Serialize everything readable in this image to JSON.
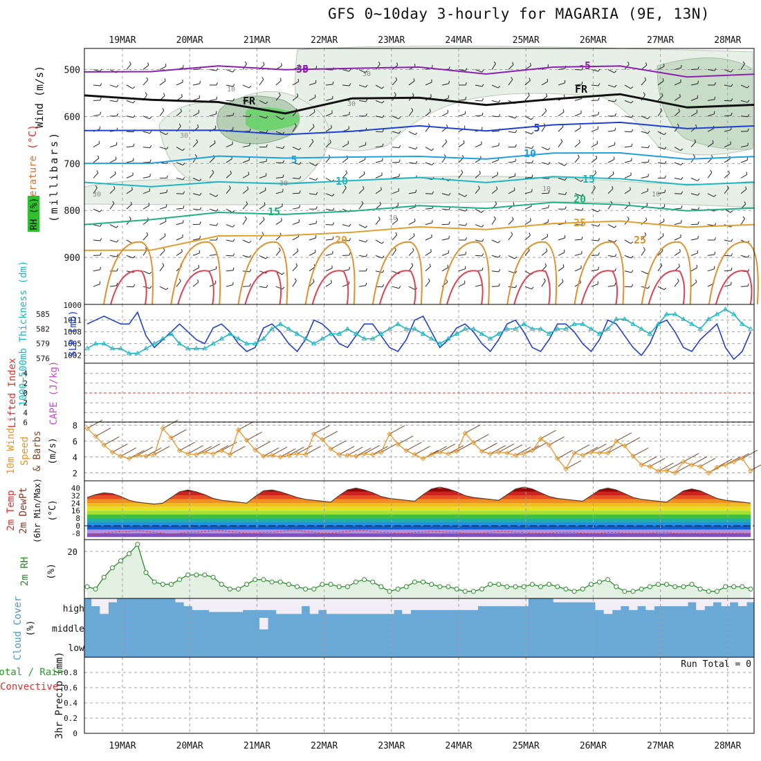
{
  "title": "GFS 0~10day 3-hourly for MAGARIA (9E, 13N)",
  "colors": {
    "grid": "#a0a0a0",
    "frame": "#000000",
    "slp": "#1f3fd0",
    "thickness": "#1fb6c0",
    "wind": "#e8952a",
    "rh2m": "#2a8a2a",
    "rh2m_fill": "#e3f1e3",
    "cloud": "#6aa9d6",
    "cloud_clear": "#f2eef6",
    "li_zero": "#e03030",
    "fr_line": "#111111"
  },
  "chart_data": [
    {
      "id": "vertical_profile",
      "type": "contour",
      "ylabel": "(millibars)",
      "side_labels": [
        "Wind (m/s)",
        "Temperature (°C)",
        "RH (%)"
      ],
      "y_ticks": [
        500,
        600,
        700,
        800,
        900
      ],
      "x_ticks": [
        "19MAR",
        "20MAR",
        "21MAR",
        "22MAR",
        "23MAR",
        "24MAR",
        "25MAR",
        "26MAR",
        "27MAR",
        "28MAR"
      ],
      "temperature_labels": [
        "-5",
        "-5",
        "FR",
        "FR",
        "5",
        "5",
        "10",
        "10",
        "15",
        "15",
        "20",
        "20",
        "25",
        "25",
        "30"
      ],
      "rh_labels": [
        "30",
        "30",
        "30",
        "30",
        "30",
        "10",
        "10",
        "10",
        "10"
      ],
      "isotherms": [
        {
          "label": "-5",
          "pressure": [
            505,
            500,
            498,
            497,
            496,
            500,
            504,
            497,
            495,
            510,
            515
          ]
        },
        {
          "label": "FR",
          "pressure": [
            555,
            560,
            575,
            590,
            560,
            565,
            570,
            565,
            555,
            575,
            580
          ]
        },
        {
          "label": "5",
          "pressure": [
            630,
            625,
            635,
            635,
            630,
            625,
            625,
            620,
            615,
            620,
            625
          ]
        },
        {
          "label": "10",
          "pressure": [
            700,
            695,
            690,
            685,
            685,
            690,
            685,
            680,
            680,
            685,
            690
          ]
        },
        {
          "label": "15",
          "pressure": [
            740,
            745,
            745,
            740,
            735,
            735,
            735,
            730,
            735,
            740,
            745
          ]
        },
        {
          "label": "20",
          "pressure": [
            830,
            815,
            810,
            805,
            800,
            795,
            790,
            785,
            790,
            795,
            800
          ]
        },
        {
          "label": "25",
          "pressure": [
            885,
            880,
            860,
            850,
            845,
            840,
            835,
            830,
            825,
            830,
            835
          ]
        }
      ]
    },
    {
      "id": "slp_thickness",
      "type": "line",
      "ylabel_left": "1000~500mb Thickness (dm)",
      "ylabel_right": "SLP (mb)",
      "thickness_ticks": [
        "585",
        "582",
        "579",
        "576"
      ],
      "slp_ticks": [
        "1011",
        "1008",
        "1005",
        "1002"
      ],
      "top_tick": "1000",
      "series": [
        {
          "name": "SLP",
          "unit": "mb",
          "values": [
            1010,
            1011,
            1012,
            1011,
            1010,
            1010,
            1013,
            1007,
            1004,
            1006,
            1008,
            1010,
            1008,
            1006,
            1005,
            1009,
            1010,
            1008,
            1005,
            1003,
            1004,
            1009,
            1010,
            1008,
            1005,
            1003,
            1006,
            1011,
            1010,
            1008,
            1005,
            1004,
            1007,
            1010,
            1010,
            1007,
            1004,
            1003,
            1006,
            1011,
            1012,
            1008,
            1004,
            1006,
            1009,
            1010,
            1008,
            1005,
            1003,
            1006,
            1010,
            1011,
            1008,
            1004,
            1003,
            1006,
            1010,
            1010,
            1008,
            1005,
            1003,
            1006,
            1011,
            1010,
            1007,
            1004,
            1002,
            1005,
            1010,
            1011,
            1008,
            1004,
            1003,
            1006,
            1008,
            1010,
            1004,
            1001,
            1003,
            1008
          ]
        },
        {
          "name": "Thickness",
          "unit": "dm",
          "values": [
            578,
            579,
            579,
            578,
            578,
            577,
            577,
            578,
            579,
            580,
            581,
            579,
            578,
            578,
            578,
            579,
            580,
            581,
            580,
            579,
            579,
            580,
            582,
            583,
            582,
            581,
            580,
            579,
            580,
            581,
            581,
            582,
            581,
            580,
            580,
            581,
            582,
            583,
            582,
            582,
            581,
            580,
            579,
            580,
            581,
            582,
            582,
            581,
            580,
            581,
            582,
            582,
            583,
            582,
            582,
            581,
            582,
            582,
            583,
            583,
            582,
            581,
            582,
            584,
            584,
            583,
            582,
            581,
            583,
            585,
            585,
            584,
            583,
            582,
            584,
            585,
            586,
            585,
            583,
            582
          ]
        }
      ]
    },
    {
      "id": "lifted_cape",
      "type": "line",
      "ylabel_left": "Lifted Index",
      "ylabel_right": "CAPE (J/kg)",
      "y_ticks": [
        "-4",
        "-2",
        "0",
        "2",
        "4",
        "6"
      ],
      "top_tick": "6",
      "zero_line": 0
    },
    {
      "id": "wind10m",
      "type": "line",
      "ylabel_left": "10m Wind Speed & Barbs",
      "ylabel_right": "(m/s)",
      "y_ticks": [
        2,
        4,
        6,
        8
      ],
      "ylim": [
        1,
        8
      ],
      "series": [
        {
          "name": "10m Wind Speed",
          "unit": "m/s",
          "values": [
            7.6,
            6.6,
            5.5,
            4.6,
            4.1,
            3.8,
            4.2,
            4.1,
            4.3,
            7.6,
            6.4,
            4.8,
            4.4,
            4.3,
            4.6,
            4.4,
            4.8,
            4.3,
            7.4,
            6.1,
            4.9,
            4.1,
            4.2,
            4.0,
            4.2,
            4.4,
            4.3,
            6.9,
            6.2,
            5.0,
            4.3,
            4.2,
            4.1,
            4.4,
            4.3,
            4.6,
            6.9,
            5.6,
            4.8,
            4.3,
            3.8,
            4.3,
            4.6,
            4.4,
            4.7,
            7.0,
            5.8,
            4.7,
            4.4,
            4.6,
            4.5,
            4.2,
            4.4,
            4.8,
            6.3,
            5.5,
            3.8,
            2.5,
            4.5,
            4.2,
            4.6,
            4.5,
            4.5,
            6.0,
            5.4,
            4.1,
            3.0,
            2.8,
            2.2,
            2.3,
            2.0,
            3.4,
            3.0,
            2.8,
            2.0,
            2.7,
            3.0,
            3.4,
            3.8,
            2.3
          ]
        }
      ]
    },
    {
      "id": "temp2m",
      "type": "area",
      "ylabel": "2m Temp 2m DewPt (6hr Min/Max) (°C)",
      "y_ticks": [
        "40",
        "32",
        "24",
        "16",
        "8",
        "0",
        "-8"
      ],
      "series": [
        {
          "name": "2m Temp",
          "unit": "°C",
          "values": [
            30,
            33,
            35,
            34,
            31,
            27,
            25,
            24,
            23,
            24,
            30,
            36,
            38,
            36,
            33,
            29,
            27,
            26,
            25,
            24,
            31,
            37,
            38,
            36,
            33,
            30,
            28,
            27,
            26,
            25,
            32,
            38,
            40,
            38,
            35,
            31,
            29,
            28,
            27,
            26,
            33,
            39,
            41,
            39,
            36,
            32,
            30,
            29,
            28,
            27,
            33,
            39,
            41,
            39,
            35,
            31,
            29,
            28,
            27,
            26,
            32,
            38,
            40,
            38,
            34,
            30,
            28,
            27,
            26,
            25,
            31,
            37,
            39,
            37,
            33,
            29,
            27,
            26,
            25,
            24
          ]
        },
        {
          "name": "2m DewPt",
          "unit": "°C",
          "values": [
            -10,
            -9,
            -8,
            -7,
            -6,
            -6,
            -5,
            -6,
            -7,
            -8,
            -9,
            -8,
            -7,
            -7,
            -6,
            -5,
            -5,
            -6,
            -7,
            -8,
            -8,
            -7,
            -7,
            -6,
            -5,
            -5,
            -6,
            -7,
            -8,
            -8,
            -7,
            -6,
            -5,
            -5,
            -6,
            -7,
            -7,
            -8,
            -8,
            -7,
            -7,
            -6,
            -6,
            -7,
            -7,
            -8,
            -8,
            -8,
            -7,
            -6,
            -6,
            -7,
            -7,
            -8,
            -8,
            -8,
            -7,
            -7,
            -7,
            -8,
            -8,
            -8,
            -7,
            -7,
            -8,
            -8,
            -8,
            -8,
            -7,
            -7,
            -8,
            -8,
            -8,
            -8,
            -8,
            -8,
            -8,
            -8,
            -8,
            -8
          ]
        }
      ]
    },
    {
      "id": "rh2m",
      "type": "area",
      "ylabel": "2m RH",
      "ylabel_unit": "(%)",
      "y_ticks": [
        20
      ],
      "ylim": [
        0,
        25
      ],
      "series": [
        {
          "name": "2m RH",
          "unit": "%",
          "values": [
            5,
            4,
            9,
            13,
            16,
            19,
            23,
            11,
            7,
            6,
            6,
            8,
            10,
            10,
            10,
            9,
            6,
            4,
            4,
            6,
            8,
            8,
            7,
            7,
            6,
            5,
            4,
            4,
            6,
            6,
            5,
            5,
            7,
            8,
            7,
            5,
            3,
            4,
            5,
            7,
            7,
            6,
            5,
            5,
            4,
            3,
            3,
            4,
            6,
            6,
            5,
            5,
            5,
            6,
            5,
            6,
            5,
            4,
            3,
            4,
            6,
            7,
            8,
            5,
            3,
            3,
            4,
            5,
            6,
            6,
            5,
            5,
            6,
            4,
            3,
            3,
            5,
            5,
            5,
            4
          ]
        }
      ]
    },
    {
      "id": "cloud_cover",
      "type": "bar",
      "ylabel": "Cloud Cover",
      "ylabel_unit": "(%)",
      "levels": [
        "high",
        "middle",
        "low"
      ],
      "series": [
        {
          "name": "high",
          "unit": "%",
          "values": [
            100,
            60,
            20,
            80,
            100,
            100,
            100,
            100,
            100,
            100,
            100,
            80,
            60,
            40,
            40,
            30,
            30,
            30,
            30,
            40,
            40,
            40,
            40,
            20,
            20,
            20,
            60,
            20,
            40,
            20,
            20,
            20,
            20,
            20,
            20,
            20,
            20,
            40,
            20,
            40,
            40,
            40,
            40,
            40,
            40,
            40,
            40,
            60,
            60,
            60,
            60,
            60,
            60,
            100,
            100,
            100,
            80,
            80,
            80,
            80,
            80,
            40,
            20,
            40,
            60,
            40,
            60,
            40,
            60,
            60,
            60,
            60,
            80,
            40,
            60,
            80,
            60,
            80,
            60,
            80
          ]
        },
        {
          "name": "middle",
          "unit": "%",
          "values": [
            100,
            100,
            100,
            100,
            100,
            100,
            100,
            100,
            100,
            100,
            100,
            100,
            100,
            100,
            100,
            100,
            100,
            100,
            100,
            100,
            100,
            40,
            100,
            100,
            100,
            100,
            100,
            100,
            100,
            100,
            100,
            100,
            100,
            100,
            100,
            100,
            100,
            100,
            100,
            100,
            100,
            100,
            100,
            100,
            100,
            100,
            100,
            100,
            100,
            100,
            100,
            100,
            100,
            100,
            100,
            100,
            100,
            100,
            100,
            100,
            100,
            100,
            100,
            100,
            100,
            100,
            100,
            100,
            100,
            100,
            100,
            100,
            100,
            100,
            100,
            100,
            100,
            100,
            100,
            100
          ]
        },
        {
          "name": "low",
          "unit": "%",
          "values": [
            100,
            100,
            100,
            100,
            100,
            100,
            100,
            100,
            100,
            100,
            100,
            100,
            100,
            100,
            100,
            100,
            100,
            100,
            100,
            100,
            100,
            100,
            100,
            100,
            100,
            100,
            100,
            100,
            100,
            100,
            100,
            100,
            100,
            100,
            100,
            100,
            100,
            100,
            100,
            100,
            100,
            100,
            100,
            100,
            100,
            100,
            100,
            100,
            100,
            100,
            100,
            100,
            100,
            100,
            100,
            100,
            100,
            100,
            100,
            100,
            100,
            100,
            100,
            100,
            100,
            100,
            100,
            100,
            100,
            100,
            100,
            100,
            100,
            100,
            100,
            100,
            100,
            100,
            100,
            100
          ]
        }
      ]
    },
    {
      "id": "precip",
      "type": "bar",
      "ylabel": "3hr Precip (mm)",
      "side_labels": [
        "Total / Rain",
        "Convective"
      ],
      "y_ticks": [
        "0",
        "0.2",
        "0.4",
        "0.6",
        "0.8"
      ],
      "ylim": [
        0,
        1
      ],
      "run_total": "Run Total = 0",
      "series": [
        {
          "name": "Total",
          "unit": "mm",
          "values": [
            0,
            0,
            0,
            0,
            0,
            0,
            0,
            0,
            0,
            0,
            0,
            0,
            0,
            0,
            0,
            0,
            0,
            0,
            0,
            0,
            0,
            0,
            0,
            0,
            0,
            0,
            0,
            0,
            0,
            0,
            0,
            0,
            0,
            0,
            0,
            0,
            0,
            0,
            0,
            0,
            0,
            0,
            0,
            0,
            0,
            0,
            0,
            0,
            0,
            0,
            0,
            0,
            0,
            0,
            0,
            0,
            0,
            0,
            0,
            0,
            0,
            0,
            0,
            0,
            0,
            0,
            0,
            0,
            0,
            0,
            0,
            0,
            0,
            0,
            0,
            0,
            0,
            0,
            0,
            0
          ]
        }
      ]
    }
  ]
}
